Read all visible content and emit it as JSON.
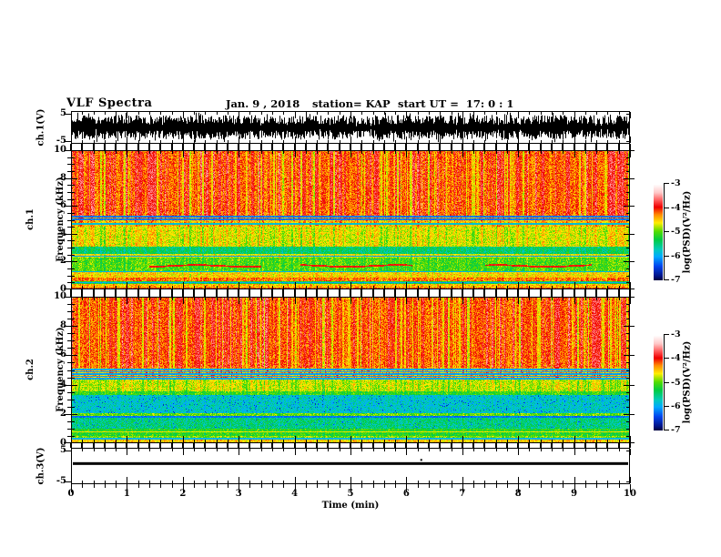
{
  "title": {
    "text": "VLF Spectra"
  },
  "header": {
    "date": "Jan. 9 , 2018",
    "station": "station= KAP",
    "start_ut": "start UT =  17: 0 : 1"
  },
  "time_axis": {
    "label": "Time (min)",
    "tick_labels": [
      "0",
      "1",
      "2",
      "3",
      "4",
      "5",
      "6",
      "7",
      "8",
      "9",
      "10"
    ],
    "range_min": [
      0,
      10
    ],
    "minor_step_min": 0.2
  },
  "panels": {
    "ch1_wave": {
      "name": "ch.1(V)",
      "tick_labels": [
        "5",
        "-5"
      ],
      "tick_values": [
        5,
        -5
      ],
      "ylim": [
        -6,
        6
      ]
    },
    "ch1_spec": {
      "name_line1": "ch.1",
      "name_line2": "Frequency (kHz)",
      "tick_labels": [
        "0",
        "2",
        "4",
        "6",
        "8",
        "10"
      ],
      "tick_values": [
        0,
        2,
        4,
        6,
        8,
        10
      ],
      "ylim": [
        0,
        10
      ]
    },
    "ch2_spec": {
      "name_line1": "ch.2",
      "name_line2": "Frequency (kHz)",
      "tick_labels": [
        "0",
        "2",
        "4",
        "6",
        "8",
        "10"
      ],
      "tick_values": [
        0,
        2,
        4,
        6,
        8,
        10
      ],
      "ylim": [
        0,
        10
      ]
    },
    "ch3_wave": {
      "name": "ch.3(V)",
      "tick_labels": [
        "5",
        "-5"
      ],
      "tick_values": [
        5,
        -5
      ],
      "ylim": [
        -6,
        6
      ]
    }
  },
  "colorbar": {
    "label": "log(PSD)(V²/Hz)",
    "tick_labels": [
      "-3",
      "-4",
      "-5",
      "-6",
      "-7"
    ],
    "tick_values": [
      -3,
      -4,
      -5,
      -6,
      -7
    ],
    "range": [
      -7,
      -3
    ],
    "stops": [
      [
        -7.0,
        "#000033"
      ],
      [
        -6.8,
        "#001488"
      ],
      [
        -6.4,
        "#0044ee"
      ],
      [
        -6.0,
        "#00aaff"
      ],
      [
        -5.7,
        "#00ccbb"
      ],
      [
        -5.3,
        "#00cc44"
      ],
      [
        -4.95,
        "#55dd00"
      ],
      [
        -4.6,
        "#ffee00"
      ],
      [
        -4.25,
        "#ff8800"
      ],
      [
        -3.95,
        "#ee0000"
      ],
      [
        -3.7,
        "#ff5050"
      ],
      [
        -3.35,
        "#ffc8c8"
      ],
      [
        -3.0,
        "#ffffff"
      ]
    ]
  },
  "chart_data": [
    {
      "type": "line",
      "channel": "ch.1",
      "ylabel": "ch.1(V)",
      "xlabel": "Time (min)",
      "xlim": [
        0,
        10
      ],
      "ylim": [
        -6,
        6
      ],
      "yticks": [
        5,
        -5
      ],
      "color": "#000000",
      "signal": "dense broadband noise filling approximately ±4.5 V for the full 10 minutes",
      "amplitude_v": [
        1.2,
        4.5
      ]
    },
    {
      "type": "heatmap",
      "channel": "ch.1",
      "ylabel": "Frequency (kHz)",
      "xlabel": "Time (min)",
      "xlim": [
        0,
        10
      ],
      "ylim": [
        0,
        10
      ],
      "zlabel": "log(PSD)(V²/Hz)",
      "zlim": [
        -7,
        -3
      ],
      "noise": 0.55,
      "streaks": {
        "bright_p": 0.3,
        "bright": 0.42,
        "dark_p": 0.16,
        "dark": 0.38
      },
      "bands": [
        {
          "f": [
            5.35,
            10.01
          ],
          "level": -4.2,
          "streak_weight": 1.0
        },
        {
          "f": [
            5.0,
            5.35
          ],
          "level": -4.35,
          "streak_weight": 0.5
        },
        {
          "f": [
            4.55,
            5.0
          ],
          "level": -4.45,
          "streak_weight": 0.5
        },
        {
          "f": [
            3.1,
            4.55
          ],
          "level": -4.7,
          "streak_weight": 0.55
        },
        {
          "f": [
            2.55,
            3.1
          ],
          "level": -5.45,
          "streak_weight": 0.3
        },
        {
          "f": [
            2.3,
            2.55
          ],
          "level": -4.65,
          "streak_weight": 0.3
        },
        {
          "f": [
            1.35,
            2.3
          ],
          "level": -5.05,
          "streak_weight": 0.3
        },
        {
          "f": [
            0.85,
            1.35
          ],
          "level": -4.55,
          "streak_weight": 0.25
        },
        {
          "f": [
            0.6,
            0.85
          ],
          "level": -4.25,
          "streak_weight": 0.25
        },
        {
          "f": [
            0.4,
            0.6
          ],
          "level": -5.3,
          "streak_weight": 0.25
        },
        {
          "f": [
            0.15,
            0.4
          ],
          "level": -4.45,
          "streak_weight": 0.25
        },
        {
          "f": [
            0.0,
            0.15
          ],
          "level": -4.1,
          "streak_weight": 0.2
        }
      ],
      "lines": [
        {
          "f": 5.25,
          "level": -6.2
        },
        {
          "f": 5.08,
          "level": -6.2
        },
        {
          "f": 4.75,
          "level": -5.8
        },
        {
          "f": 2.42,
          "level": -6.0
        },
        {
          "f": 1.32,
          "level": -5.9
        },
        {
          "f": 0.52,
          "level": -6.0
        }
      ],
      "arcs": [
        {
          "f": 1.72,
          "level": -3.95,
          "x_ranges_min": [
            [
              1.4,
              3.4
            ],
            [
              4.1,
              6.1
            ],
            [
              7.4,
              9.3
            ]
          ]
        }
      ]
    },
    {
      "type": "heatmap",
      "channel": "ch.2",
      "ylabel": "Frequency (kHz)",
      "xlabel": "Time (min)",
      "xlim": [
        0,
        10
      ],
      "ylim": [
        0,
        10
      ],
      "zlabel": "log(PSD)(V²/Hz)",
      "zlim": [
        -7,
        -3
      ],
      "noise": 0.55,
      "streaks": {
        "bright_p": 0.26,
        "bright": 0.38,
        "dark_p": 0.18,
        "dark": 0.42
      },
      "bands": [
        {
          "f": [
            5.2,
            10.01
          ],
          "level": -4.15,
          "streak_weight": 1.0
        },
        {
          "f": [
            4.35,
            5.2
          ],
          "level": -4.35,
          "streak_weight": 0.45
        },
        {
          "f": [
            3.55,
            4.35
          ],
          "level": -4.75,
          "streak_weight": 0.5
        },
        {
          "f": [
            3.3,
            3.55
          ],
          "level": -5.1,
          "streak_weight": 0.3
        },
        {
          "f": [
            2.05,
            3.3
          ],
          "level": -5.75,
          "streak_weight": 0.22,
          "dots": true
        },
        {
          "f": [
            1.8,
            2.05
          ],
          "level": -4.95,
          "streak_weight": 0.25
        },
        {
          "f": [
            1.0,
            1.8
          ],
          "level": -5.5,
          "streak_weight": 0.25,
          "dots": true
        },
        {
          "f": [
            0.55,
            1.0
          ],
          "level": -5.15,
          "streak_weight": 0.25
        },
        {
          "f": [
            0.25,
            0.55
          ],
          "level": -4.9,
          "streak_weight": 0.25
        },
        {
          "f": [
            0.1,
            0.25
          ],
          "level": -4.5,
          "streak_weight": 0.25
        },
        {
          "f": [
            0.0,
            0.1
          ],
          "level": -5.6,
          "streak_weight": 0.2
        }
      ],
      "lines": [
        {
          "f": 5.05,
          "level": -6.0
        },
        {
          "f": 4.9,
          "level": -6.0
        },
        {
          "f": 4.75,
          "level": -6.0
        },
        {
          "f": 4.6,
          "level": -6.0
        },
        {
          "f": 4.45,
          "level": -6.0
        },
        {
          "f": 1.82,
          "level": -6.2
        },
        {
          "f": 0.8,
          "level": -4.6
        },
        {
          "f": 0.35,
          "level": -5.9
        }
      ],
      "arcs": []
    },
    {
      "type": "line",
      "channel": "ch.3",
      "ylabel": "ch.3(V)",
      "xlabel": "Time (min)",
      "xlim": [
        0,
        10
      ],
      "ylim": [
        -6,
        6
      ],
      "yticks": [
        5,
        -5
      ],
      "color": "#000000",
      "signal": "flat constant trace near +0.8 V with one tiny blip",
      "value_v": 0.8,
      "blip_x_min": 6.25
    }
  ]
}
